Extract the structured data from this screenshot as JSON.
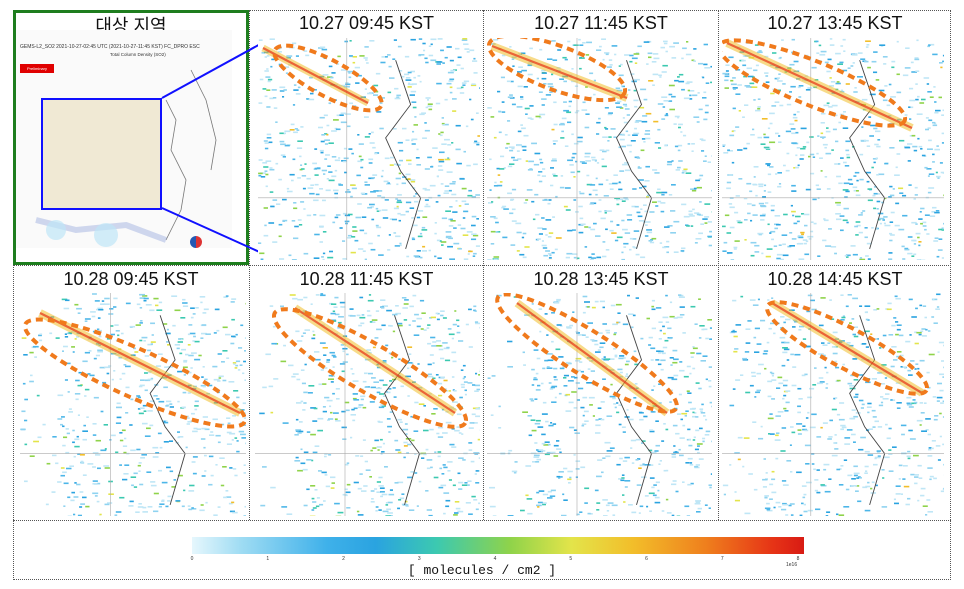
{
  "overview": {
    "title": "대상 지역",
    "header_text": "GEMS-L2_SO2 2021-10-27-02:45 UTC (2021-10-27-11:45 KST)  FC_DPRO ESC",
    "sub_text": "Total Column Density (SO2)",
    "badge_text": "Preliminary"
  },
  "panels": [
    {
      "label": "10.27  09:45  KST"
    },
    {
      "label": "10.27  11:45  KST"
    },
    {
      "label": "10.27  13:45  KST"
    },
    {
      "label": "10.28  09:45  KST"
    },
    {
      "label": "10.28  11:45  KST"
    },
    {
      "label": "10.28  13:45  KST"
    },
    {
      "label": "10.28  14:45  KST"
    }
  ],
  "colorbar": {
    "unit_label": "[ molecules / cm2 ]",
    "exponent": "1e16",
    "ticks": [
      "0",
      "1",
      "2",
      "3",
      "4",
      "5",
      "6",
      "7",
      "8"
    ]
  },
  "colors": {
    "overview_border": "#1e7d1e",
    "highlight_box": "#1010ff",
    "plume_outline": "#f07a1c",
    "plume_core": "#e63316"
  }
}
